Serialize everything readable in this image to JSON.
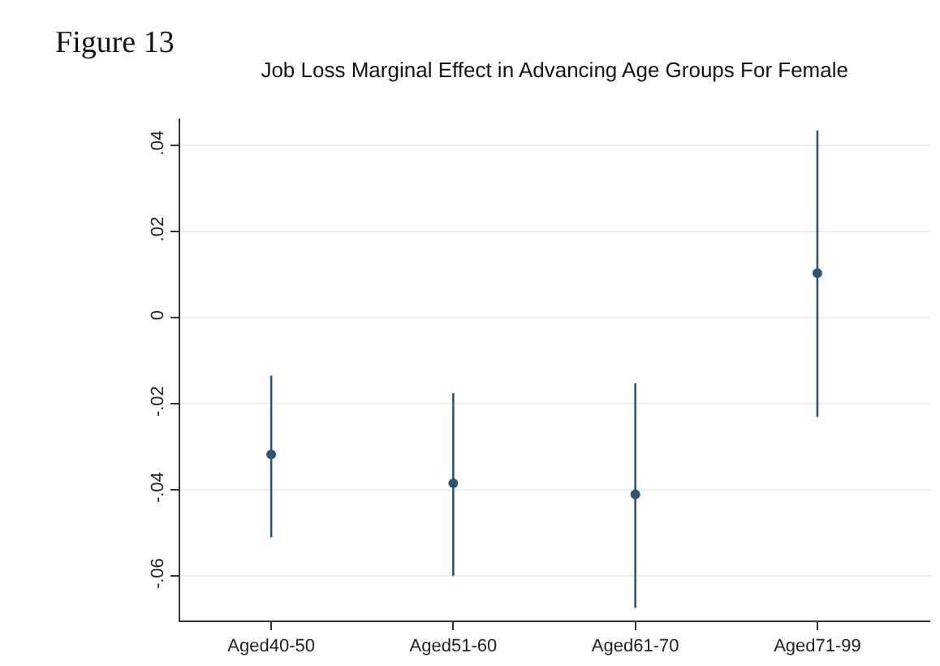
{
  "chart_data": {
    "type": "scatter",
    "title": "Job Loss Marginal Effect in Advancing Age Groups For Female",
    "annotations": [
      "Figure 13"
    ],
    "categories": [
      "Aged40-50",
      "Aged51-60",
      "Aged61-70",
      "Aged71-99"
    ],
    "series": [
      {
        "color": "#2f5476",
        "values": [
          -0.0317,
          -0.0384,
          -0.041,
          0.0104
        ],
        "errors": [
          [
            -0.051,
            -0.0134
          ],
          [
            -0.0599,
            -0.0175
          ],
          [
            -0.0674,
            -0.0152
          ],
          [
            -0.023,
            0.0435
          ]
        ]
      }
    ],
    "ylim": [
      -0.0703,
      0.0463
    ],
    "yticks": [
      {
        "value": -0.06,
        "label": "-.06"
      },
      {
        "value": -0.04,
        "label": "-.04"
      },
      {
        "value": -0.02,
        "label": "-.02"
      },
      0,
      {
        "value": 0.02,
        "label": ".02"
      },
      {
        "value": 0.04,
        "label": ".04"
      }
    ],
    "grid": "y",
    "marker": "circle",
    "legend": false
  }
}
